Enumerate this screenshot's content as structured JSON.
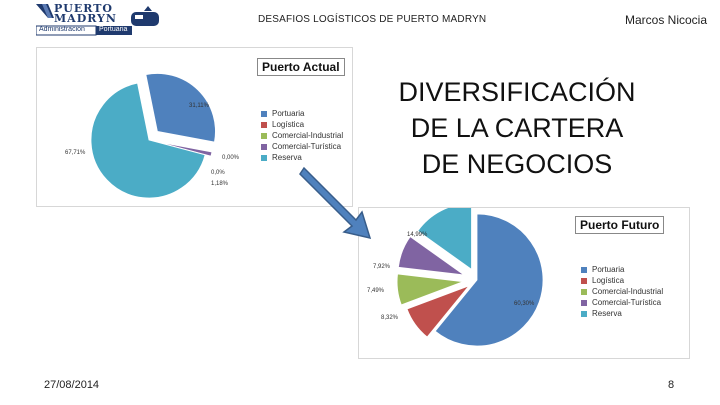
{
  "logo": {
    "line1": "PUERTO",
    "line2": "MADRYN",
    "sub1": "Administración",
    "sub2": "Portuaria"
  },
  "header": {
    "title": "DESAFIOS LOGÍSTICOS DE PUERTO MADRYN",
    "author": "Marcos Nicocia"
  },
  "headline": [
    "DIVERSIFICACIÓN",
    "DE LA CARTERA",
    "DE NEGOCIOS"
  ],
  "footer": {
    "date": "27/08/2014",
    "page": "8"
  },
  "colors": {
    "portuaria": "#4f81bd",
    "logistica": "#c0504d",
    "comercial_industrial": "#9bbb59",
    "comercial_turistica": "#8064a2",
    "reserva": "#4bacc6",
    "arrow": "#4f81bd"
  },
  "chart_data": [
    {
      "type": "pie",
      "title": "Puerto Actual",
      "categories": [
        "Portuaria",
        "Logística",
        "Comercial-Industrial",
        "Comercial-Turística",
        "Reserva"
      ],
      "values": [
        31.11,
        0.0,
        0.0,
        1.18,
        67.71
      ],
      "data_labels": [
        "31,11%",
        "0,00%",
        "0,0%",
        "1,18%",
        "67,71%"
      ],
      "legend_position": "right"
    },
    {
      "type": "pie",
      "title": "Puerto Futuro",
      "categories": [
        "Portuaria",
        "Logística",
        "Comercial-Industrial",
        "Comercial-Turística",
        "Reserva"
      ],
      "values": [
        60.3,
        8.32,
        7.49,
        7.92,
        14.99
      ],
      "data_labels": [
        "60,30%",
        "8,32%",
        "7,49%",
        "7,92%",
        "14,99%"
      ],
      "legend_position": "right"
    }
  ]
}
